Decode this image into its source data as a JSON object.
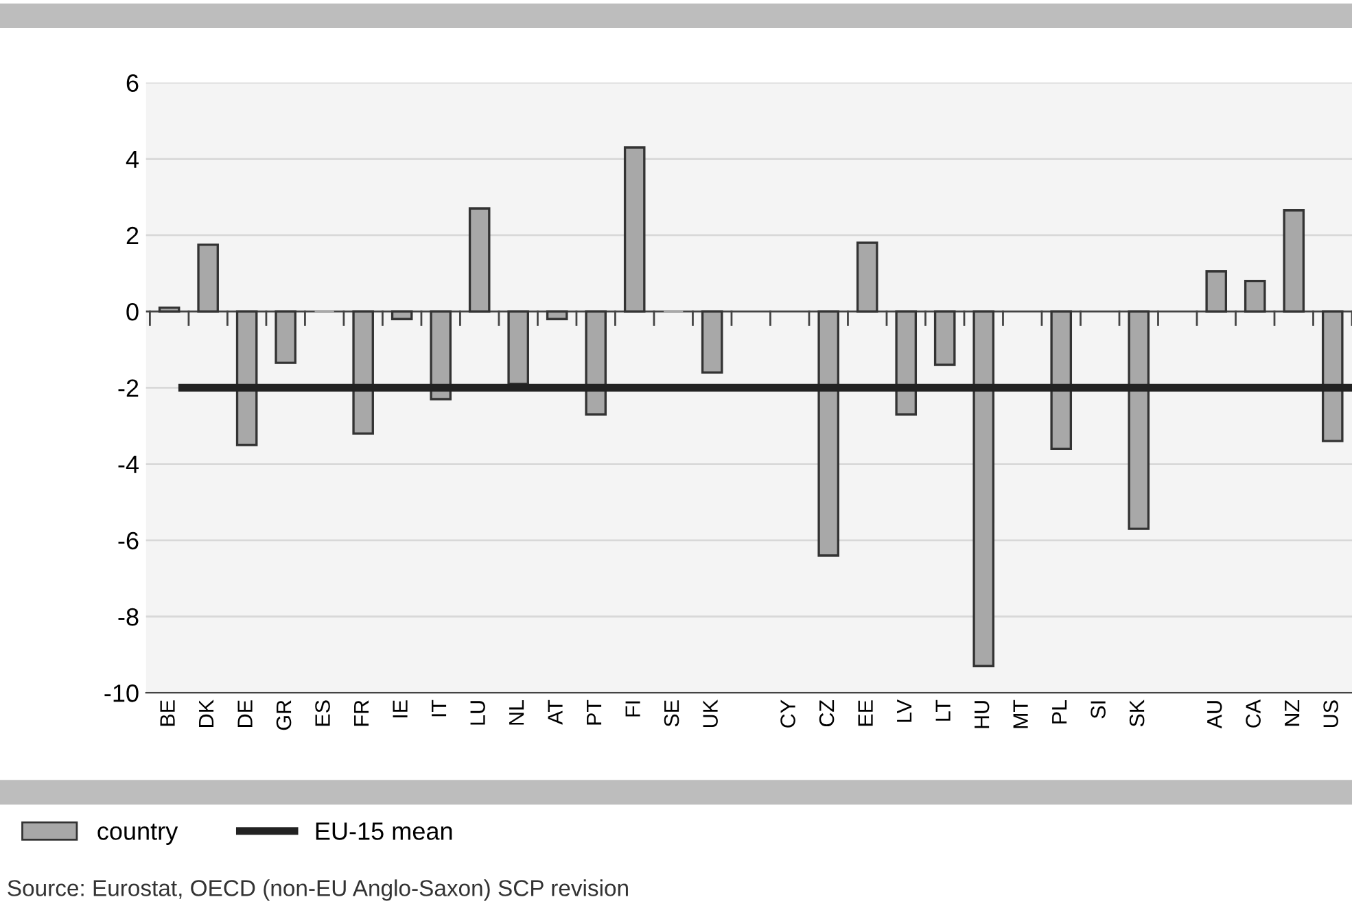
{
  "chart_data": {
    "type": "bar",
    "categories": [
      "BE",
      "DK",
      "DE",
      "GR",
      "ES",
      "FR",
      "IE",
      "IT",
      "LU",
      "NL",
      "AT",
      "PT",
      "FI",
      "SE",
      "UK",
      null,
      "CY",
      "CZ",
      "EE",
      "LV",
      "LT",
      "HU",
      "MT",
      "PL",
      "SI",
      "SK",
      null,
      "AU",
      "CA",
      "NZ",
      "US"
    ],
    "series": [
      {
        "name": "country",
        "color": "#a8a8a8",
        "values": [
          0.1,
          1.75,
          -3.5,
          -1.35,
          0,
          -3.2,
          -0.2,
          -2.3,
          2.7,
          -1.9,
          -0.2,
          -2.7,
          4.3,
          0,
          -1.6,
          null,
          null,
          -6.4,
          1.8,
          -2.7,
          -1.4,
          -9.3,
          null,
          -3.6,
          null,
          -5.7,
          null,
          1.05,
          0.8,
          2.65,
          -3.4
        ]
      }
    ],
    "ylim": [
      -10,
      6
    ],
    "yticks": [
      -10,
      -8,
      -6,
      -4,
      -2,
      0,
      2,
      4,
      6
    ],
    "ref_lines": [
      {
        "axis": "y",
        "value": -2,
        "label": "EU-15 mean",
        "color": "#222222"
      }
    ],
    "grid": "y",
    "legend": "bottom left",
    "annotations": [
      "Source: Eurostat, OECD (non-EU Anglo-Saxon) SCP revision"
    ]
  }
}
